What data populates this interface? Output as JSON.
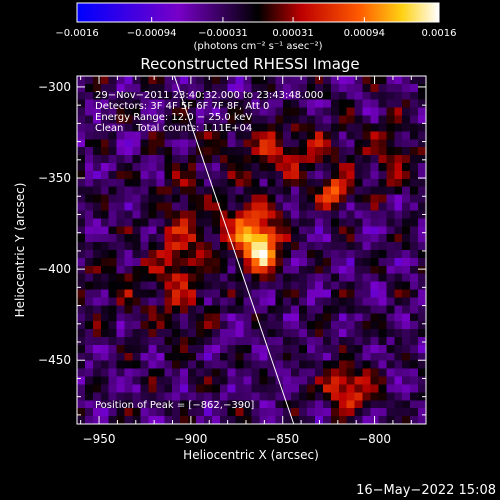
{
  "chart_data": {
    "type": "heatmap",
    "title": "Reconstructed RHESSI Image",
    "xlabel": "Heliocentric X (arcsec)",
    "ylabel": "Heliocentric Y (arcsec)",
    "xlim": [
      -962,
      -772
    ],
    "ylim": [
      -485,
      -294
    ],
    "x_ticks": [
      -950,
      -900,
      -850,
      -800
    ],
    "x_tick_labels": [
      "−950",
      "−900",
      "−850",
      "−800"
    ],
    "y_ticks": [
      -300,
      -350,
      -400,
      -450
    ],
    "y_tick_labels": [
      "−300",
      "−350",
      "−400",
      "−450"
    ],
    "colorbar": {
      "range": [
        -0.0016,
        0.0016
      ],
      "ticks": [
        -0.0016,
        -0.00094,
        -0.00031,
        0.00031,
        0.00094,
        0.0016
      ],
      "tick_labels": [
        "−0.0016",
        "−0.00094",
        "−0.00031",
        "0.00031",
        "0.00094",
        "0.0016"
      ],
      "unit_label": "(photons cm⁻² s⁻¹ asec⁻²)"
    },
    "info_lines": [
      "29−Nov−2011 23:40:32.000 to 23:43:48.000",
      "Detectors: 3F 4F 5F 6F 7F 8F, Att 0",
      "Energy Range: 12.0 − 25.0 keV",
      "Clean    Total counts: 1.11E+04"
    ],
    "peak_label": "Position of Peak = [−862,−390]",
    "peak": [
      -862,
      -390
    ],
    "sources": [
      {
        "x": -862,
        "y": -390,
        "amp": 0.0016,
        "sx": 7,
        "sy": 8
      },
      {
        "x": -868,
        "y": -375,
        "amp": 0.0009,
        "sx": 12,
        "sy": 10
      },
      {
        "x": -822,
        "y": -358,
        "amp": 0.001,
        "sx": 6,
        "sy": 6
      },
      {
        "x": -815,
        "y": -465,
        "amp": 0.0011,
        "sx": 8,
        "sy": 9
      },
      {
        "x": -905,
        "y": -390,
        "amp": 0.0006,
        "sx": 10,
        "sy": 30
      },
      {
        "x": -850,
        "y": -335,
        "amp": 0.0006,
        "sx": 25,
        "sy": 10
      },
      {
        "x": -790,
        "y": -340,
        "amp": 0.0004,
        "sx": 10,
        "sy": 15
      },
      {
        "x": -935,
        "y": -410,
        "amp": 0.0003,
        "sx": 20,
        "sy": 15
      }
    ],
    "limb_line": {
      "x": [
        -909,
        -844
      ],
      "y": [
        -294,
        -485
      ]
    }
  },
  "footer": {
    "date": "16−May−2022 15:08"
  }
}
